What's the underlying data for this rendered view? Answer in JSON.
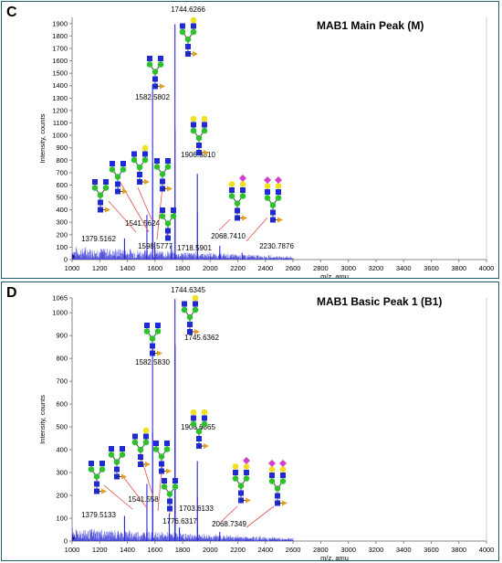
{
  "chart_data": [
    {
      "panel": "C",
      "type": "line",
      "title": "MAB1 Main Peak (M)",
      "xlabel": "m/z, amu",
      "ylabel": "Intensity, counts",
      "xlim": [
        1000,
        4000
      ],
      "ylim": [
        0,
        1950
      ],
      "xticks": [
        1000,
        1200,
        1400,
        1600,
        1800,
        2000,
        2200,
        2400,
        2600,
        2800,
        3000,
        3200,
        3400,
        3600,
        3800,
        4000
      ],
      "yticks": [
        0,
        100,
        200,
        300,
        400,
        500,
        600,
        700,
        800,
        900,
        1000,
        1100,
        1200,
        1300,
        1400,
        1500,
        1600,
        1700,
        1800,
        1900
      ],
      "ytick_labels": [
        "0",
        "100",
        "200",
        "300",
        "400",
        "500",
        "600",
        "700",
        "800",
        "900",
        "1000",
        "1100",
        "1200",
        "1300",
        "1400",
        "1500",
        "1600",
        "1700",
        "1800",
        "1900"
      ],
      "peaks": [
        {
          "mz": 1379.5162,
          "intensity": 170,
          "label": "1379.5162"
        },
        {
          "mz": 1541.5624,
          "intensity": 360,
          "label": "1541.5624"
        },
        {
          "mz": 1582.5802,
          "intensity": 1410,
          "label": "1582.5802"
        },
        {
          "mz": 1598.5777,
          "intensity": 140,
          "label": "1598.5777"
        },
        {
          "mz": 1718.5901,
          "intensity": 115,
          "label": "1718.5901"
        },
        {
          "mz": 1744.6266,
          "intensity": 1895,
          "label": "1744.6266"
        },
        {
          "mz": 1906.681,
          "intensity": 690,
          "label": "1906.6810"
        },
        {
          "mz": 2068.741,
          "intensity": 110,
          "label": "2068.7410"
        },
        {
          "mz": 2230.7876,
          "intensity": 55,
          "label": "2230.7876"
        }
      ]
    },
    {
      "panel": "D",
      "type": "line",
      "title": "MAB1 Basic Peak 1 (B1)",
      "xlabel": "m/z, amu",
      "ylabel": "Intensity, counts",
      "xlim": [
        1000,
        4000
      ],
      "ylim": [
        0,
        1065
      ],
      "xticks": [
        1000,
        1200,
        1400,
        1600,
        1800,
        2000,
        2200,
        2400,
        2600,
        2800,
        3000,
        3200,
        3400,
        3600,
        3800,
        4000
      ],
      "yticks": [
        0,
        100,
        200,
        300,
        400,
        500,
        600,
        700,
        800,
        900,
        1000,
        1065
      ],
      "ytick_labels": [
        "0",
        "100",
        "200",
        "300",
        "400",
        "500",
        "600",
        "700",
        "800",
        "900",
        "1000",
        "1065"
      ],
      "peaks": [
        {
          "mz": 1379.5133,
          "intensity": 110,
          "label": "1379.5133"
        },
        {
          "mz": 1541.558,
          "intensity": 250,
          "label": "1541.558"
        },
        {
          "mz": 1582.583,
          "intensity": 860,
          "label": "1582.5830"
        },
        {
          "mz": 1703.6133,
          "intensity": 120,
          "label": "1703.6133"
        },
        {
          "mz": 1744.6345,
          "intensity": 1060,
          "label": "1744.6345"
        },
        {
          "mz": 1745.6362,
          "intensity": 860,
          "label": "1745.6362"
        },
        {
          "mz": 1776.6317,
          "intensity": 60,
          "label": "1776.6317"
        },
        {
          "mz": 1906.6865,
          "intensity": 350,
          "label": "1906.6865"
        },
        {
          "mz": 2068.7349,
          "intensity": 40,
          "label": "2068.7349"
        }
      ]
    }
  ],
  "colors": {
    "spectrum": "#2b2bd6",
    "leader": "#e05050",
    "glcnac": "#1f2ad6",
    "mannose": "#2fbf2f",
    "galactose": "#f0e020",
    "fucose": "#e0a020",
    "sialic": "#d040c8",
    "frame": "#1f5f6a"
  }
}
